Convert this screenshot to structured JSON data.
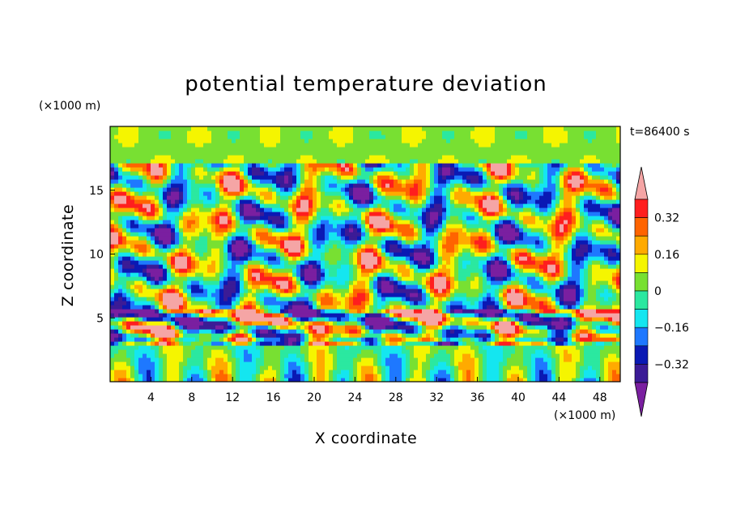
{
  "chart_data": {
    "type": "heatmap",
    "title": "potential temperature deviation",
    "xlabel": "X coordinate",
    "ylabel": "Z coordinate",
    "x_unit": "(×1000 m)",
    "y_unit": "(×1000 m)",
    "time_label": "t=86400 s",
    "xlim": [
      0,
      50
    ],
    "ylim": [
      0,
      20
    ],
    "x_ticks": [
      4,
      8,
      12,
      16,
      20,
      24,
      28,
      32,
      36,
      40,
      44,
      48
    ],
    "y_ticks": [
      5,
      10,
      15
    ],
    "colorbar": {
      "levels": [
        -0.4,
        -0.32,
        -0.24,
        -0.16,
        -0.08,
        0,
        0.08,
        0.16,
        0.24,
        0.32,
        0.4
      ],
      "labeled_levels": [
        "0.32",
        "0.16",
        "0",
        "−0.16",
        "−0.32"
      ],
      "colors": [
        "#7a1fa0",
        "#3b1b96",
        "#0a19b4",
        "#1e78ff",
        "#14e6f0",
        "#2be8a0",
        "#78e032",
        "#f5f500",
        "#ffaa00",
        "#ff6400",
        "#ff1e1e",
        "#f5a5a5"
      ],
      "extend": "both"
    }
  }
}
